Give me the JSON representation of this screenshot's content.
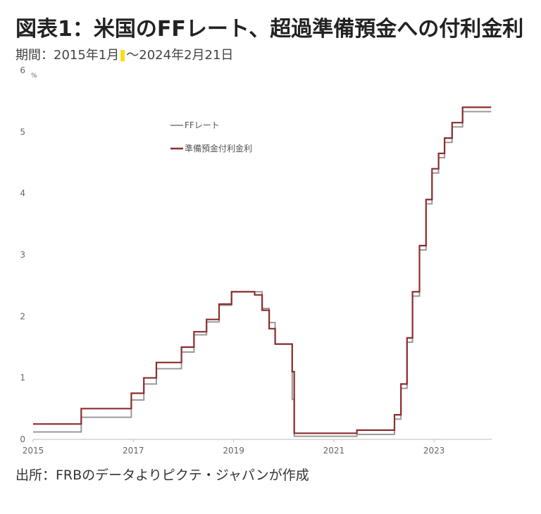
{
  "header": {
    "title": "図表1：米国のFFレート、超過準備預金への付利金利",
    "period_prefix": "期間：2015年1月",
    "period_suffix": "〜2024年2月21日"
  },
  "footer": {
    "source": "出所：FRBのデータよりピクテ・ジャパンが作成"
  },
  "chart_data": {
    "type": "line",
    "title": "",
    "xlabel": "",
    "ylabel": "",
    "unit": "%",
    "ylim": [
      0,
      6
    ],
    "y_ticks": [
      "0",
      "1",
      "2",
      "3",
      "4",
      "5",
      "6"
    ],
    "xlim": [
      2015.0,
      2024.15
    ],
    "x_ticks": [
      {
        "value": 2015,
        "label": "2015"
      },
      {
        "value": 2017,
        "label": "2017"
      },
      {
        "value": 2019,
        "label": "2019"
      },
      {
        "value": 2021,
        "label": "2021"
      },
      {
        "value": 2023,
        "label": "2023"
      }
    ],
    "grid": false,
    "legend": "top-center",
    "series": [
      {
        "name": "FFレート",
        "color": "#9a9a9a",
        "points": [
          [
            2015.0,
            0.12
          ],
          [
            2015.96,
            0.12
          ],
          [
            2015.96,
            0.36
          ],
          [
            2016.96,
            0.36
          ],
          [
            2016.96,
            0.64
          ],
          [
            2017.21,
            0.64
          ],
          [
            2017.21,
            0.9
          ],
          [
            2017.46,
            0.9
          ],
          [
            2017.46,
            1.15
          ],
          [
            2017.96,
            1.15
          ],
          [
            2017.96,
            1.42
          ],
          [
            2018.21,
            1.42
          ],
          [
            2018.21,
            1.7
          ],
          [
            2018.46,
            1.7
          ],
          [
            2018.46,
            1.91
          ],
          [
            2018.71,
            1.91
          ],
          [
            2018.71,
            2.18
          ],
          [
            2018.96,
            2.18
          ],
          [
            2018.96,
            2.4
          ],
          [
            2019.57,
            2.4
          ],
          [
            2019.57,
            2.13
          ],
          [
            2019.71,
            2.13
          ],
          [
            2019.71,
            1.9
          ],
          [
            2019.83,
            1.9
          ],
          [
            2019.83,
            1.55
          ],
          [
            2020.17,
            1.55
          ],
          [
            2020.17,
            0.65
          ],
          [
            2020.21,
            0.65
          ],
          [
            2020.21,
            0.05
          ],
          [
            2021.46,
            0.05
          ],
          [
            2021.46,
            0.08
          ],
          [
            2022.21,
            0.08
          ],
          [
            2022.21,
            0.33
          ],
          [
            2022.34,
            0.33
          ],
          [
            2022.34,
            0.83
          ],
          [
            2022.46,
            0.83
          ],
          [
            2022.46,
            1.58
          ],
          [
            2022.57,
            1.58
          ],
          [
            2022.57,
            2.33
          ],
          [
            2022.71,
            2.33
          ],
          [
            2022.71,
            3.08
          ],
          [
            2022.84,
            3.08
          ],
          [
            2022.84,
            3.83
          ],
          [
            2022.96,
            3.83
          ],
          [
            2022.96,
            4.33
          ],
          [
            2023.09,
            4.33
          ],
          [
            2023.09,
            4.58
          ],
          [
            2023.21,
            4.58
          ],
          [
            2023.21,
            4.83
          ],
          [
            2023.36,
            4.83
          ],
          [
            2023.36,
            5.08
          ],
          [
            2023.57,
            5.08
          ],
          [
            2023.57,
            5.33
          ],
          [
            2024.14,
            5.33
          ]
        ]
      },
      {
        "name": "準備預金付利金利",
        "color": "#8b2e2e",
        "points": [
          [
            2015.0,
            0.25
          ],
          [
            2015.96,
            0.25
          ],
          [
            2015.96,
            0.5
          ],
          [
            2016.96,
            0.5
          ],
          [
            2016.96,
            0.75
          ],
          [
            2017.21,
            0.75
          ],
          [
            2017.21,
            1.0
          ],
          [
            2017.46,
            1.0
          ],
          [
            2017.46,
            1.25
          ],
          [
            2017.96,
            1.25
          ],
          [
            2017.96,
            1.5
          ],
          [
            2018.21,
            1.5
          ],
          [
            2018.21,
            1.75
          ],
          [
            2018.46,
            1.75
          ],
          [
            2018.46,
            1.95
          ],
          [
            2018.71,
            1.95
          ],
          [
            2018.71,
            2.2
          ],
          [
            2018.96,
            2.2
          ],
          [
            2018.96,
            2.4
          ],
          [
            2019.42,
            2.4
          ],
          [
            2019.42,
            2.35
          ],
          [
            2019.57,
            2.35
          ],
          [
            2019.57,
            2.1
          ],
          [
            2019.71,
            2.1
          ],
          [
            2019.71,
            1.8
          ],
          [
            2019.83,
            1.8
          ],
          [
            2019.83,
            1.55
          ],
          [
            2020.17,
            1.55
          ],
          [
            2020.17,
            1.1
          ],
          [
            2020.21,
            1.1
          ],
          [
            2020.21,
            0.1
          ],
          [
            2021.46,
            0.1
          ],
          [
            2021.46,
            0.15
          ],
          [
            2022.21,
            0.15
          ],
          [
            2022.21,
            0.4
          ],
          [
            2022.34,
            0.4
          ],
          [
            2022.34,
            0.9
          ],
          [
            2022.46,
            0.9
          ],
          [
            2022.46,
            1.65
          ],
          [
            2022.57,
            1.65
          ],
          [
            2022.57,
            2.4
          ],
          [
            2022.71,
            2.4
          ],
          [
            2022.71,
            3.15
          ],
          [
            2022.84,
            3.15
          ],
          [
            2022.84,
            3.9
          ],
          [
            2022.96,
            3.9
          ],
          [
            2022.96,
            4.4
          ],
          [
            2023.09,
            4.4
          ],
          [
            2023.09,
            4.65
          ],
          [
            2023.21,
            4.65
          ],
          [
            2023.21,
            4.9
          ],
          [
            2023.36,
            4.9
          ],
          [
            2023.36,
            5.15
          ],
          [
            2023.57,
            5.15
          ],
          [
            2023.57,
            5.4
          ],
          [
            2024.14,
            5.4
          ]
        ]
      }
    ]
  }
}
